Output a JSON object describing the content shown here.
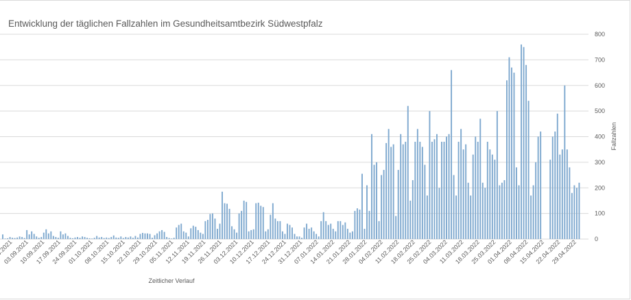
{
  "chart_data": {
    "type": "bar",
    "title": "Entwicklung der täglichen Fallzahlen im Gesundheitsamtbezirk Südwestpfalz",
    "xlabel": "Zeitlicher Verlauf",
    "ylabel": "Fallzahlen",
    "ylim": [
      0,
      800
    ],
    "yticks": [
      0,
      100,
      200,
      300,
      400,
      500,
      600,
      700,
      800
    ],
    "y_axis_position": "right",
    "grid": true,
    "colors": {
      "bar": "#7fa9cf",
      "grid": "#d9d9d9",
      "text": "#595959"
    },
    "tick_labels": [
      "08.2021",
      "03.09.2021",
      "10.09.2021",
      "17.09.2021",
      "24.09.2021",
      "01.10.2021",
      "08.10.2021",
      "15.10.2021",
      "22.10.2021",
      "29.10.2021",
      "05.11.2021",
      "12.11.2021",
      "19.11.2021",
      "26.11.2021",
      "03.12.2021",
      "10.12.2021",
      "17.12.2021",
      "24.12.2021",
      "31.12.2021",
      "07.01.2022",
      "14.01.2022",
      "21.01.2022",
      "28.01.2022",
      "04.02.2022",
      "11.02.2022",
      "18.02.2022",
      "25.02.2022",
      "04.03.2022",
      "11.03.2022",
      "18.03.2022",
      "25.03.2022",
      "01.04.2022",
      "08.04.2022",
      "15.04.2022",
      "22.04.2022",
      "29.04.2022"
    ],
    "start_date": "2021-08-27",
    "values": [
      18,
      2,
      3,
      8,
      5,
      4,
      6,
      10,
      8,
      4,
      35,
      18,
      30,
      20,
      10,
      5,
      8,
      25,
      38,
      22,
      30,
      12,
      8,
      5,
      30,
      18,
      22,
      12,
      5,
      3,
      6,
      8,
      5,
      10,
      8,
      5,
      3,
      2,
      5,
      12,
      6,
      8,
      4,
      6,
      4,
      8,
      14,
      6,
      5,
      10,
      4,
      8,
      6,
      10,
      5,
      12,
      6,
      20,
      24,
      22,
      22,
      20,
      5,
      15,
      22,
      30,
      35,
      28,
      8,
      4,
      2,
      5,
      45,
      55,
      60,
      30,
      25,
      10,
      42,
      52,
      48,
      35,
      25,
      20,
      70,
      75,
      98,
      100,
      80,
      40,
      60,
      185,
      140,
      138,
      118,
      50,
      38,
      25,
      100,
      110,
      150,
      145,
      30,
      35,
      38,
      140,
      142,
      130,
      125,
      30,
      38,
      95,
      140,
      80,
      70,
      70,
      30,
      20,
      60,
      55,
      45,
      20,
      10,
      10,
      5,
      45,
      60,
      40,
      45,
      30,
      20,
      10,
      70,
      105,
      70,
      55,
      60,
      40,
      30,
      70,
      70,
      55,
      65,
      40,
      25,
      30,
      110,
      120,
      115,
      255,
      40,
      210,
      110,
      410,
      290,
      300,
      70,
      250,
      270,
      375,
      430,
      360,
      370,
      90,
      270,
      410,
      370,
      380,
      520,
      150,
      230,
      380,
      430,
      380,
      360,
      290,
      170,
      500,
      380,
      390,
      410,
      200,
      380,
      380,
      400,
      410,
      660,
      250,
      170,
      380,
      430,
      350,
      370,
      220,
      170,
      330,
      400,
      380,
      470,
      220,
      200,
      380,
      350,
      330,
      310,
      500,
      210,
      220,
      230,
      620,
      710,
      670,
      650,
      280,
      210,
      760,
      750,
      680,
      540,
      170,
      210,
      300,
      400,
      420,
      -1,
      -1,
      -1,
      310,
      400,
      420,
      490,
      330,
      350,
      600,
      350,
      280,
      180,
      210,
      200,
      220,
      0,
      0,
      0
    ],
    "values_note": "daily case counts from start_date in chronological order; -1 means no bar"
  }
}
